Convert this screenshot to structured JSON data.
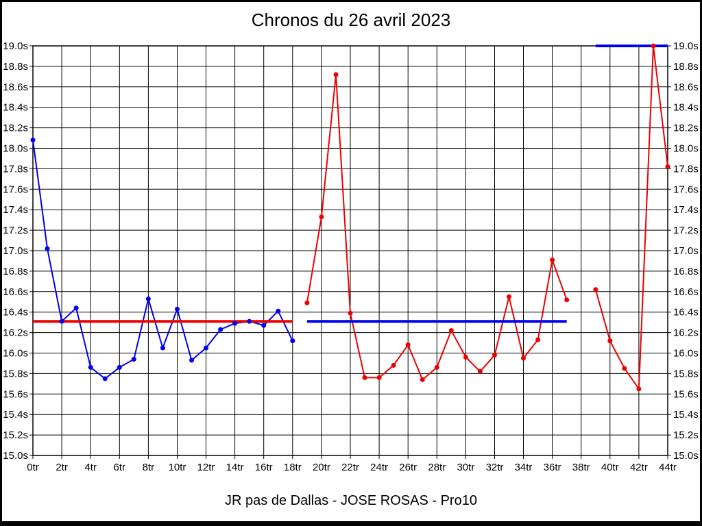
{
  "header": {
    "title": "Chronos du 26 avril 2023"
  },
  "footer": {
    "caption": "JR pas de Dallas - JOSE ROSAS - Pro10"
  },
  "colors": {
    "blue_series": "#0000ee",
    "red_series": "#ee0000",
    "grid": "#000000",
    "background": "#ffffff",
    "frame": "#000000"
  },
  "chart_data": {
    "type": "line",
    "title": "Chronos du 26 avril 2023",
    "caption": "JR pas de Dallas - JOSE ROSAS - Pro10",
    "xlabel": "",
    "ylabel": "",
    "xlim": [
      0,
      44
    ],
    "ylim": [
      15.0,
      19.0
    ],
    "grid": true,
    "x_tick_unit": "tr",
    "y_tick_unit": "s",
    "x_ticks": [
      {
        "value": 0,
        "label": "0tr"
      },
      {
        "value": 2,
        "label": "2tr"
      },
      {
        "value": 4,
        "label": "4tr"
      },
      {
        "value": 6,
        "label": "6tr"
      },
      {
        "value": 8,
        "label": "8tr"
      },
      {
        "value": 10,
        "label": "10tr"
      },
      {
        "value": 12,
        "label": "12tr"
      },
      {
        "value": 14,
        "label": "14tr"
      },
      {
        "value": 16,
        "label": "16tr"
      },
      {
        "value": 18,
        "label": "18tr"
      },
      {
        "value": 20,
        "label": "20tr"
      },
      {
        "value": 22,
        "label": "22tr"
      },
      {
        "value": 24,
        "label": "24tr"
      },
      {
        "value": 26,
        "label": "26tr"
      },
      {
        "value": 28,
        "label": "28tr"
      },
      {
        "value": 30,
        "label": "30tr"
      },
      {
        "value": 32,
        "label": "32tr"
      },
      {
        "value": 34,
        "label": "34tr"
      },
      {
        "value": 36,
        "label": "36tr"
      },
      {
        "value": 38,
        "label": "38tr"
      },
      {
        "value": 40,
        "label": "40tr"
      },
      {
        "value": 42,
        "label": "42tr"
      },
      {
        "value": 44,
        "label": "44tr"
      }
    ],
    "y_ticks": [
      {
        "value": 15.0,
        "label": "15.0s"
      },
      {
        "value": 15.2,
        "label": "15.2s"
      },
      {
        "value": 15.4,
        "label": "15.4s"
      },
      {
        "value": 15.6,
        "label": "15.6s"
      },
      {
        "value": 15.8,
        "label": "15.8s"
      },
      {
        "value": 16.0,
        "label": "16.0s"
      },
      {
        "value": 16.2,
        "label": "16.2s"
      },
      {
        "value": 16.4,
        "label": "16.4s"
      },
      {
        "value": 16.6,
        "label": "16.6s"
      },
      {
        "value": 16.8,
        "label": "16.8s"
      },
      {
        "value": 17.0,
        "label": "17.0s"
      },
      {
        "value": 17.2,
        "label": "17.2s"
      },
      {
        "value": 17.4,
        "label": "17.4s"
      },
      {
        "value": 17.6,
        "label": "17.6s"
      },
      {
        "value": 17.8,
        "label": "17.8s"
      },
      {
        "value": 18.0,
        "label": "18.0s"
      },
      {
        "value": 18.2,
        "label": "18.2s"
      },
      {
        "value": 18.4,
        "label": "18.4s"
      },
      {
        "value": 18.6,
        "label": "18.6s"
      },
      {
        "value": 18.8,
        "label": "18.8s"
      },
      {
        "value": 19.0,
        "label": "19.0s"
      }
    ],
    "series": [
      {
        "name": "blue-series",
        "color": "#0000ee",
        "points": [
          [
            0,
            18.08
          ],
          [
            1,
            17.02
          ],
          [
            2,
            16.31
          ],
          [
            3,
            16.44
          ],
          [
            4,
            15.86
          ],
          [
            5,
            15.75
          ],
          [
            6,
            15.86
          ],
          [
            7,
            15.94
          ],
          [
            8,
            16.53
          ],
          [
            9,
            16.05
          ],
          [
            10,
            16.43
          ],
          [
            11,
            15.93
          ],
          [
            12,
            16.05
          ],
          [
            13,
            16.23
          ],
          [
            14,
            16.29
          ],
          [
            15,
            16.31
          ],
          [
            16,
            16.27
          ],
          [
            17,
            16.41
          ],
          [
            18,
            16.12
          ]
        ]
      },
      {
        "name": "red-series-part1",
        "color": "#ee0000",
        "points": [
          [
            19,
            16.49
          ],
          [
            20,
            17.33
          ],
          [
            21,
            18.72
          ],
          [
            22,
            16.39
          ],
          [
            23,
            15.76
          ],
          [
            24,
            15.76
          ],
          [
            25,
            15.88
          ],
          [
            26,
            16.08
          ],
          [
            27,
            15.74
          ],
          [
            28,
            15.86
          ],
          [
            29,
            16.22
          ],
          [
            30,
            15.96
          ],
          [
            31,
            15.82
          ],
          [
            32,
            15.98
          ],
          [
            33,
            16.55
          ],
          [
            34,
            15.95
          ],
          [
            35,
            16.13
          ],
          [
            36,
            16.91
          ],
          [
            37,
            16.52
          ]
        ]
      },
      {
        "name": "red-series-part2",
        "color": "#ee0000",
        "points": [
          [
            39,
            16.62
          ],
          [
            40,
            16.12
          ],
          [
            41,
            15.85
          ],
          [
            42,
            15.65
          ],
          [
            43,
            19.0
          ],
          [
            44,
            17.82
          ]
        ]
      }
    ],
    "reference_lines": [
      {
        "name": "mean-line-blue-segment",
        "color": "#ee0000",
        "y": 16.31,
        "x_start": 0,
        "x_end": 18
      },
      {
        "name": "mean-line-red-segment",
        "color": "#0000ee",
        "y": 16.31,
        "x_start": 19,
        "x_end": 37
      },
      {
        "name": "top-line-19s",
        "color": "#0000ee",
        "y": 19.0,
        "x_start": 39,
        "x_end": 44
      }
    ]
  }
}
